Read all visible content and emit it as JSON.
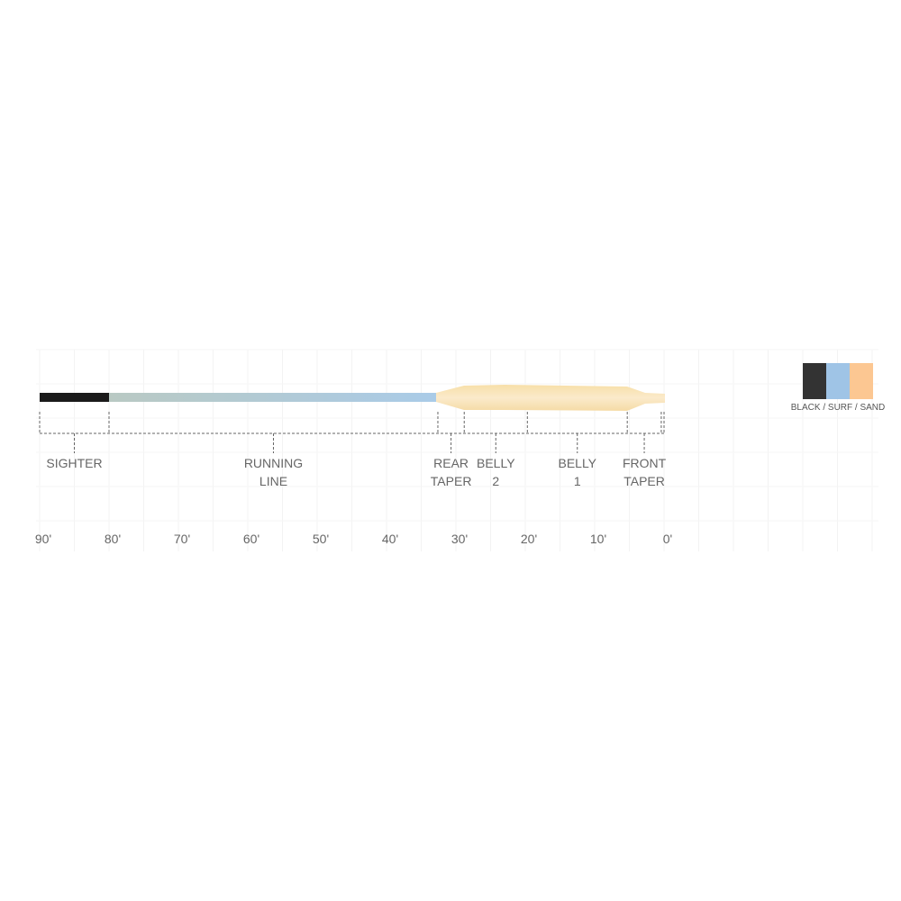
{
  "scale": {
    "unit": "feet",
    "max": 90,
    "min": 0,
    "tick_labels": [
      "90'",
      "80'",
      "70'",
      "60'",
      "50'",
      "40'",
      "30'",
      "20'",
      "10'",
      "0'"
    ]
  },
  "sections": [
    {
      "line1": "SIGHTER",
      "line2": "",
      "from_ft": 90,
      "to_ft": 80
    },
    {
      "line1": "RUNNING",
      "line2": "LINE",
      "from_ft": 80,
      "to_ft": 32.6
    },
    {
      "line1": "REAR",
      "line2": "TAPER",
      "from_ft": 32.6,
      "to_ft": 28.8
    },
    {
      "line1": "BELLY",
      "line2": "2",
      "from_ft": 28.8,
      "to_ft": 19.7
    },
    {
      "line1": "BELLY",
      "line2": "1",
      "from_ft": 19.7,
      "to_ft": 5.3
    },
    {
      "line1": "FRONT",
      "line2": "TAPER",
      "from_ft": 5.3,
      "to_ft": 0.4
    }
  ],
  "colors": {
    "black": "#1a1a1a",
    "surf": "#a9cbe8",
    "sand": "#f8e2b0",
    "running_line_start": "#b9c9c3"
  },
  "legend": {
    "label": "BLACK / SURF / SAND",
    "swatches": [
      "#333333",
      "#9fc4e6",
      "#fcc792"
    ]
  }
}
